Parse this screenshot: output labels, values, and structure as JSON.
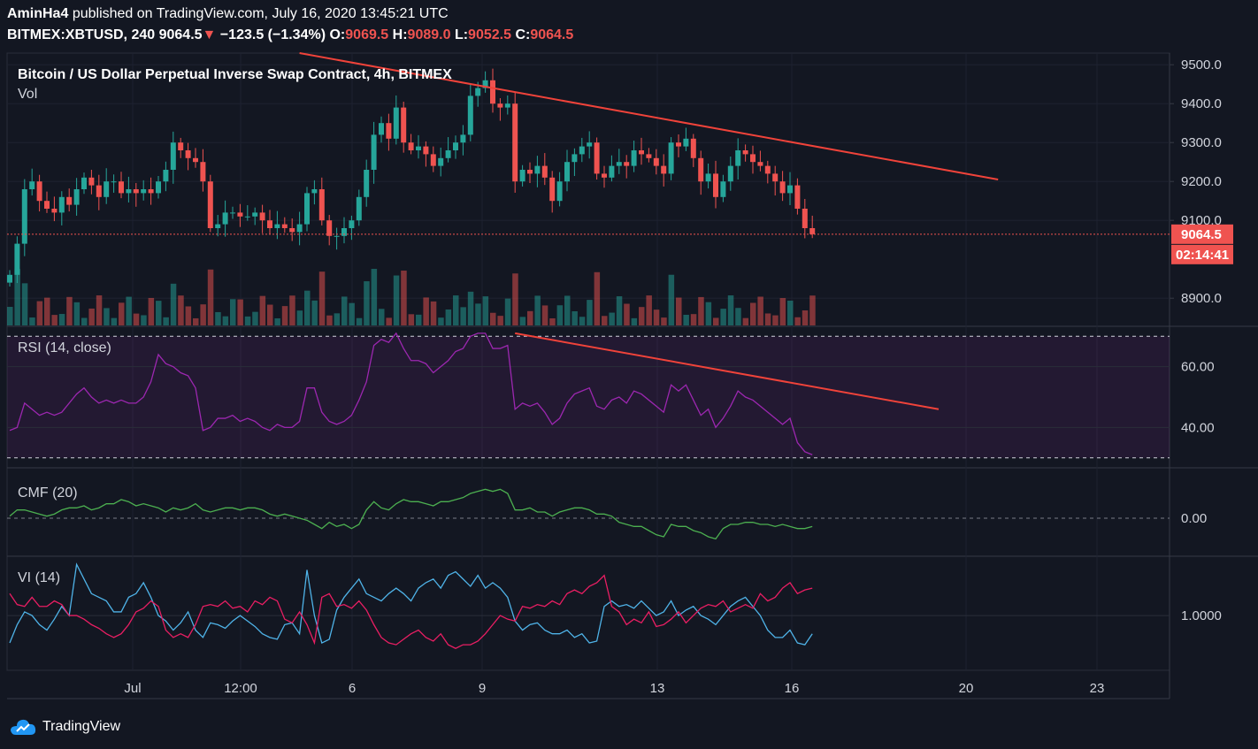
{
  "header": {
    "author": "AminHa4",
    "published_text": "published on TradingView.com, July 16, 2020 13:45:21 UTC",
    "symbol": "BITMEX:XBTUSD, 240",
    "last_price": "9064.5",
    "change_arrow": "▼",
    "change": "−123.5 (−1.34%)",
    "o_label": "O:",
    "o_value": "9069.5",
    "h_label": "H:",
    "h_value": "9089.0",
    "l_label": "L:",
    "l_value": "9052.5",
    "c_label": "C:",
    "c_value": "9064.5"
  },
  "footer": {
    "brand": "TradingView"
  },
  "colors": {
    "up": "#26a69a",
    "down": "#ef5350",
    "trendline": "#f0433a",
    "rsi": "#9c27b0",
    "cmf": "#4caf50",
    "vi_plus": "#4fb3e8",
    "vi_minus": "#e91e63"
  },
  "chart_data": {
    "type": "candlestick",
    "title": "Bitcoin / US Dollar Perpetual Inverse Swap Contract, 4h, BITMEX",
    "volume_label": "Vol",
    "x_tick_labels": [
      "Jul",
      "12:00",
      "6",
      "9",
      "13",
      "16",
      "20",
      "23"
    ],
    "price_ticks": [
      9500.0,
      9400.0,
      9300.0,
      9200.0,
      9100.0,
      8900.0
    ],
    "price_tick_labels": [
      "9500.0",
      "9400.0",
      "9300.0",
      "9200.0",
      "9100.0",
      "8900.0"
    ],
    "price_range": [
      8830,
      9530
    ],
    "last_price_label": "9064.5",
    "countdown_label": "02:14:41",
    "closes": [
      8960,
      9040,
      9180,
      9200,
      9150,
      9130,
      9120,
      9160,
      9140,
      9180,
      9210,
      9190,
      9160,
      9200,
      9200,
      9170,
      9180,
      9170,
      9180,
      9170,
      9200,
      9230,
      9300,
      9280,
      9260,
      9250,
      9200,
      9080,
      9090,
      9120,
      9120,
      9110,
      9110,
      9120,
      9100,
      9080,
      9090,
      9080,
      9070,
      9090,
      9170,
      9180,
      9100,
      9060,
      9060,
      9080,
      9100,
      9160,
      9230,
      9320,
      9350,
      9310,
      9390,
      9300,
      9280,
      9290,
      9270,
      9240,
      9260,
      9280,
      9300,
      9320,
      9420,
      9440,
      9460,
      9400,
      9390,
      9400,
      9200,
      9230,
      9220,
      9240,
      9210,
      9150,
      9200,
      9250,
      9270,
      9290,
      9300,
      9220,
      9210,
      9240,
      9250,
      9240,
      9280,
      9270,
      9260,
      9240,
      9220,
      9300,
      9290,
      9310,
      9260,
      9200,
      9220,
      9160,
      9200,
      9240,
      9280,
      9270,
      9250,
      9240,
      9220,
      9200,
      9170,
      9190,
      9130,
      9080,
      9064.5
    ],
    "volume_label_axis": "Vol",
    "rsi": {
      "label": "RSI (14, close)",
      "ticks": [
        60.0,
        40.0
      ],
      "tick_labels": [
        "60.00",
        "40.00"
      ],
      "band": [
        70,
        30
      ],
      "range": [
        27,
        73
      ],
      "values": [
        39,
        40,
        48,
        46,
        44,
        45,
        44,
        45,
        48,
        51,
        53,
        50,
        48,
        49,
        48,
        49,
        48,
        48,
        50,
        55,
        64,
        61,
        60,
        58,
        57,
        53,
        39,
        40,
        43,
        43,
        44,
        42,
        43,
        42,
        40,
        39,
        41,
        40,
        40,
        42,
        53,
        53,
        45,
        42,
        41,
        42,
        44,
        49,
        55,
        67,
        69,
        68,
        71,
        66,
        62,
        62,
        61,
        58,
        60,
        62,
        65,
        66,
        70,
        71,
        71,
        66,
        66,
        67,
        46,
        48,
        47,
        48,
        45,
        41,
        43,
        48,
        51,
        52,
        53,
        47,
        46,
        49,
        50,
        48,
        52,
        51,
        49,
        47,
        45,
        54,
        52,
        54,
        49,
        44,
        46,
        40,
        43,
        47,
        52,
        50,
        49,
        47,
        45,
        43,
        41,
        43,
        35,
        32,
        31
      ]
    },
    "cmf": {
      "label": "CMF (20)",
      "ticks": [
        0.0
      ],
      "tick_labels": [
        "0.00"
      ],
      "range": [
        -0.18,
        0.24
      ],
      "values": [
        0.01,
        0.04,
        0.04,
        0.03,
        0.02,
        0.01,
        0.02,
        0.04,
        0.05,
        0.05,
        0.06,
        0.04,
        0.05,
        0.07,
        0.07,
        0.09,
        0.08,
        0.06,
        0.07,
        0.06,
        0.05,
        0.03,
        0.05,
        0.04,
        0.05,
        0.07,
        0.04,
        0.03,
        0.04,
        0.05,
        0.05,
        0.04,
        0.05,
        0.05,
        0.04,
        0.02,
        0.01,
        0.02,
        0.01,
        0.0,
        -0.01,
        -0.03,
        -0.05,
        -0.02,
        -0.04,
        -0.03,
        -0.05,
        -0.03,
        0.04,
        0.08,
        0.05,
        0.04,
        0.07,
        0.09,
        0.08,
        0.08,
        0.07,
        0.06,
        0.08,
        0.08,
        0.09,
        0.1,
        0.12,
        0.13,
        0.14,
        0.13,
        0.14,
        0.12,
        0.04,
        0.04,
        0.05,
        0.03,
        0.03,
        0.01,
        0.03,
        0.04,
        0.05,
        0.05,
        0.04,
        0.02,
        0.02,
        0.01,
        -0.02,
        -0.03,
        -0.04,
        -0.04,
        -0.06,
        -0.08,
        -0.09,
        -0.03,
        -0.04,
        -0.04,
        -0.06,
        -0.07,
        -0.09,
        -0.1,
        -0.05,
        -0.03,
        -0.03,
        -0.02,
        -0.02,
        -0.03,
        -0.03,
        -0.04,
        -0.03,
        -0.04,
        -0.05,
        -0.05,
        -0.04
      ]
    },
    "vi": {
      "label": "VI (14)",
      "ticks": [
        1.0
      ],
      "tick_labels": [
        "1.0000"
      ],
      "range": [
        0.7,
        1.32
      ],
      "vi_plus": [
        0.85,
        0.95,
        1.02,
        1.0,
        0.95,
        0.92,
        0.98,
        1.05,
        1.0,
        1.28,
        1.2,
        1.12,
        1.1,
        1.08,
        1.02,
        1.02,
        1.1,
        1.12,
        1.18,
        1.1,
        1.0,
        0.97,
        0.92,
        0.96,
        1.02,
        0.92,
        0.88,
        0.96,
        0.95,
        0.93,
        0.97,
        1.0,
        0.97,
        0.94,
        0.9,
        0.88,
        0.87,
        0.95,
        0.96,
        0.9,
        1.25,
        1.0,
        0.85,
        0.87,
        1.03,
        1.1,
        1.15,
        1.2,
        1.12,
        1.1,
        1.08,
        1.12,
        1.15,
        1.12,
        1.08,
        1.15,
        1.18,
        1.2,
        1.15,
        1.22,
        1.24,
        1.2,
        1.16,
        1.22,
        1.15,
        1.18,
        1.15,
        1.1,
        0.97,
        0.92,
        0.95,
        0.96,
        0.92,
        0.9,
        0.9,
        0.92,
        0.88,
        0.9,
        0.85,
        0.86,
        1.05,
        1.08,
        1.05,
        1.06,
        1.04,
        1.08,
        1.04,
        1.0,
        1.02,
        1.08,
        1.0,
        1.03,
        1.05,
        1.0,
        0.98,
        0.95,
        1.0,
        1.05,
        1.08,
        1.1,
        1.05,
        1.0,
        0.92,
        0.88,
        0.88,
        0.92,
        0.85,
        0.84,
        0.9
      ],
      "vi_minus": [
        1.12,
        1.06,
        1.05,
        1.1,
        1.05,
        1.05,
        1.08,
        1.06,
        1.0,
        1.0,
        0.98,
        0.95,
        0.93,
        0.9,
        0.88,
        0.9,
        0.95,
        1.02,
        1.04,
        1.08,
        1.05,
        0.92,
        0.88,
        0.9,
        0.88,
        0.95,
        1.05,
        1.06,
        1.05,
        1.08,
        1.04,
        1.05,
        1.02,
        1.08,
        1.06,
        1.1,
        1.08,
        0.98,
        0.96,
        1.02,
        0.95,
        0.85,
        1.1,
        1.12,
        1.05,
        1.06,
        1.04,
        1.08,
        1.03,
        0.95,
        0.88,
        0.85,
        0.84,
        0.87,
        0.9,
        0.92,
        0.88,
        0.86,
        0.9,
        0.84,
        0.82,
        0.84,
        0.84,
        0.86,
        0.9,
        0.95,
        1.0,
        0.98,
        0.97,
        1.05,
        1.04,
        1.06,
        1.05,
        1.08,
        1.06,
        1.12,
        1.14,
        1.12,
        1.16,
        1.18,
        1.22,
        1.05,
        1.02,
        0.95,
        0.98,
        0.96,
        1.02,
        0.94,
        0.95,
        0.98,
        1.02,
        0.96,
        1.0,
        1.04,
        1.06,
        1.05,
        1.08,
        1.02,
        1.04,
        1.06,
        1.04,
        1.12,
        1.08,
        1.1,
        1.15,
        1.18,
        1.12,
        1.14,
        1.15
      ]
    },
    "price_trendline": {
      "from": [
        39,
        9530
      ],
      "to": [
        133,
        9205
      ]
    },
    "rsi_trendline": {
      "from": [
        68,
        71
      ],
      "to": [
        125,
        46
      ]
    }
  }
}
